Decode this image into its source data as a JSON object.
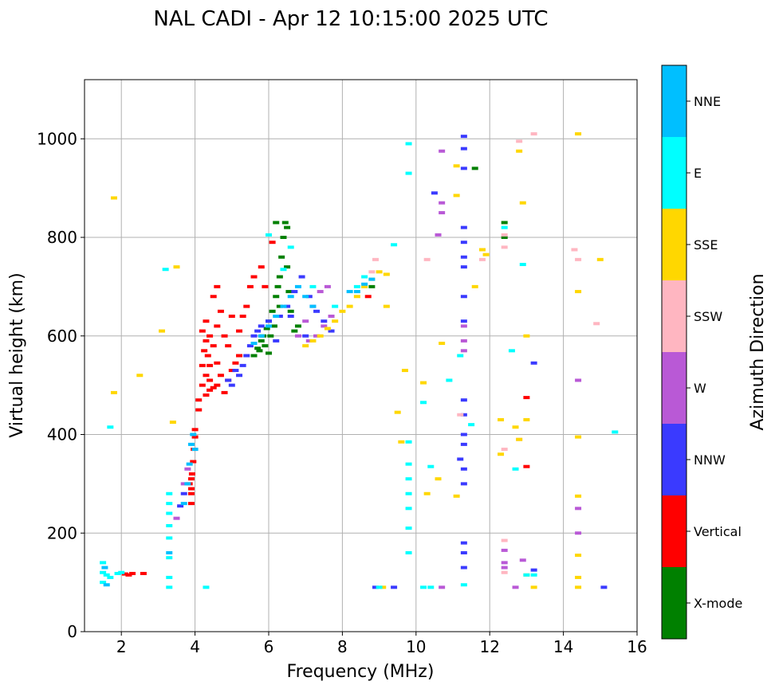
{
  "chart_data": {
    "type": "scatter",
    "title": "NAL CADI - Apr 12 10:15:00 2025 UTC",
    "xlabel": "Frequency (MHz)",
    "ylabel": "Virtual height (km)",
    "xlim": [
      1,
      16
    ],
    "ylim": [
      0,
      1120
    ],
    "xticks": [
      2,
      4,
      6,
      8,
      10,
      12,
      14,
      16
    ],
    "yticks": [
      0,
      200,
      400,
      600,
      800,
      1000
    ],
    "grid": true,
    "colorbar": {
      "label": "Azimuth Direction",
      "categories": [
        {
          "name": "X-mode",
          "color": "#008000"
        },
        {
          "name": "Vertical",
          "color": "#ff0000"
        },
        {
          "name": "NNW",
          "color": "#3a3aff"
        },
        {
          "name": "W",
          "color": "#b959d6"
        },
        {
          "name": "SSW",
          "color": "#ffb6c1"
        },
        {
          "name": "SSE",
          "color": "#ffd700"
        },
        {
          "name": "E",
          "color": "#00ffff"
        },
        {
          "name": "NNE",
          "color": "#00bfff"
        }
      ]
    },
    "series": [
      {
        "name": "X-mode",
        "points": [
          [
            5.6,
            560
          ],
          [
            5.7,
            575
          ],
          [
            5.8,
            590
          ],
          [
            5.85,
            600
          ],
          [
            5.9,
            580
          ],
          [
            5.95,
            615
          ],
          [
            6.0,
            630
          ],
          [
            6.05,
            600
          ],
          [
            6.1,
            650
          ],
          [
            6.15,
            620
          ],
          [
            6.2,
            680
          ],
          [
            6.25,
            700
          ],
          [
            6.3,
            720
          ],
          [
            6.35,
            760
          ],
          [
            6.4,
            800
          ],
          [
            6.45,
            830
          ],
          [
            6.5,
            740
          ],
          [
            6.55,
            690
          ],
          [
            6.6,
            650
          ],
          [
            6.7,
            610
          ],
          [
            6.2,
            830
          ],
          [
            6.5,
            820
          ],
          [
            5.75,
            570
          ],
          [
            6.0,
            565
          ],
          [
            6.3,
            660
          ],
          [
            11.6,
            940
          ],
          [
            12.4,
            800
          ],
          [
            12.4,
            830
          ],
          [
            8.8,
            700
          ],
          [
            6.8,
            620
          ]
        ]
      },
      {
        "name": "Vertical",
        "points": [
          [
            3.9,
            260
          ],
          [
            3.9,
            290
          ],
          [
            3.92,
            320
          ],
          [
            3.95,
            345
          ],
          [
            3.97,
            370
          ],
          [
            4.0,
            395
          ],
          [
            4.0,
            410
          ],
          [
            3.85,
            300
          ],
          [
            3.9,
            280
          ],
          [
            3.9,
            310
          ],
          [
            4.1,
            450
          ],
          [
            4.1,
            470
          ],
          [
            4.2,
            500
          ],
          [
            4.3,
            520
          ],
          [
            4.3,
            480
          ],
          [
            4.4,
            510
          ],
          [
            4.4,
            490
          ],
          [
            4.5,
            495
          ],
          [
            4.6,
            500
          ],
          [
            4.7,
            520
          ],
          [
            4.8,
            485
          ],
          [
            4.9,
            510
          ],
          [
            5.0,
            530
          ],
          [
            5.1,
            545
          ],
          [
            5.2,
            560
          ],
          [
            4.2,
            540
          ],
          [
            4.25,
            570
          ],
          [
            4.3,
            590
          ],
          [
            4.3,
            630
          ],
          [
            4.4,
            600
          ],
          [
            4.5,
            580
          ],
          [
            4.6,
            620
          ],
          [
            4.7,
            650
          ],
          [
            4.8,
            600
          ],
          [
            5.0,
            640
          ],
          [
            5.2,
            610
          ],
          [
            5.4,
            660
          ],
          [
            5.5,
            700
          ],
          [
            5.6,
            720
          ],
          [
            5.8,
            740
          ],
          [
            4.5,
            680
          ],
          [
            4.6,
            700
          ],
          [
            4.4,
            540
          ],
          [
            4.35,
            560
          ],
          [
            4.2,
            610
          ],
          [
            2.2,
            115
          ],
          [
            2.3,
            118
          ],
          [
            2.1,
            117
          ],
          [
            2.6,
            118
          ],
          [
            4.6,
            545
          ],
          [
            4.9,
            580
          ],
          [
            5.3,
            640
          ],
          [
            5.9,
            700
          ],
          [
            6.1,
            790
          ],
          [
            13.0,
            335
          ],
          [
            13.0,
            475
          ],
          [
            8.7,
            680
          ]
        ]
      },
      {
        "name": "NNW",
        "points": [
          [
            5.0,
            500
          ],
          [
            5.2,
            520
          ],
          [
            5.4,
            560
          ],
          [
            5.5,
            580
          ],
          [
            5.6,
            600
          ],
          [
            5.7,
            610
          ],
          [
            5.8,
            620
          ],
          [
            6.0,
            630
          ],
          [
            6.3,
            640
          ],
          [
            6.5,
            660
          ],
          [
            6.7,
            690
          ],
          [
            6.9,
            720
          ],
          [
            7.1,
            680
          ],
          [
            7.3,
            650
          ],
          [
            7.5,
            630
          ],
          [
            7.7,
            610
          ],
          [
            5.3,
            540
          ],
          [
            5.1,
            530
          ],
          [
            4.9,
            510
          ],
          [
            6.2,
            590
          ],
          [
            6.6,
            640
          ],
          [
            7.0,
            600
          ],
          [
            11.3,
            1005
          ],
          [
            11.3,
            980
          ],
          [
            11.3,
            940
          ],
          [
            11.3,
            820
          ],
          [
            11.3,
            790
          ],
          [
            11.3,
            760
          ],
          [
            11.3,
            740
          ],
          [
            11.3,
            680
          ],
          [
            11.3,
            630
          ],
          [
            11.3,
            470
          ],
          [
            11.3,
            440
          ],
          [
            11.3,
            400
          ],
          [
            11.3,
            380
          ],
          [
            11.3,
            330
          ],
          [
            11.3,
            300
          ],
          [
            11.3,
            180
          ],
          [
            11.3,
            130
          ],
          [
            11.3,
            160
          ],
          [
            10.5,
            890
          ],
          [
            13.2,
            545
          ],
          [
            13.2,
            125
          ],
          [
            8.9,
            90
          ],
          [
            9.4,
            90
          ],
          [
            15.1,
            90
          ],
          [
            11.2,
            350
          ],
          [
            3.6,
            255
          ],
          [
            3.7,
            280
          ]
        ]
      },
      {
        "name": "W",
        "points": [
          [
            6.8,
            600
          ],
          [
            7.0,
            630
          ],
          [
            7.2,
            660
          ],
          [
            7.4,
            690
          ],
          [
            7.6,
            700
          ],
          [
            7.7,
            640
          ],
          [
            7.5,
            620
          ],
          [
            7.3,
            600
          ],
          [
            7.1,
            590
          ],
          [
            10.7,
            975
          ],
          [
            10.7,
            870
          ],
          [
            10.7,
            850
          ],
          [
            10.6,
            805
          ],
          [
            11.3,
            620
          ],
          [
            11.3,
            590
          ],
          [
            11.3,
            570
          ],
          [
            14.4,
            510
          ],
          [
            14.4,
            250
          ],
          [
            14.4,
            200
          ],
          [
            12.4,
            165
          ],
          [
            12.4,
            140
          ],
          [
            12.4,
            130
          ],
          [
            12.7,
            90
          ],
          [
            12.9,
            145
          ],
          [
            10.7,
            90
          ],
          [
            3.5,
            230
          ],
          [
            3.7,
            300
          ],
          [
            3.8,
            330
          ]
        ]
      },
      {
        "name": "SSW",
        "points": [
          [
            8.9,
            755
          ],
          [
            8.8,
            730
          ],
          [
            12.8,
            995
          ],
          [
            12.4,
            805
          ],
          [
            12.4,
            780
          ],
          [
            12.4,
            370
          ],
          [
            12.4,
            185
          ],
          [
            12.4,
            120
          ],
          [
            12.8,
            390
          ],
          [
            13.2,
            1010
          ],
          [
            14.3,
            775
          ],
          [
            14.4,
            755
          ],
          [
            14.9,
            625
          ],
          [
            11.2,
            440
          ],
          [
            11.8,
            755
          ],
          [
            10.3,
            755
          ]
        ]
      },
      {
        "name": "SSE",
        "points": [
          [
            7.4,
            600
          ],
          [
            7.6,
            615
          ],
          [
            7.8,
            630
          ],
          [
            8.0,
            650
          ],
          [
            8.2,
            660
          ],
          [
            8.4,
            680
          ],
          [
            8.6,
            700
          ],
          [
            8.8,
            715
          ],
          [
            9.0,
            730
          ],
          [
            9.2,
            725
          ],
          [
            7.0,
            580
          ],
          [
            7.2,
            590
          ],
          [
            1.8,
            880
          ],
          [
            3.5,
            740
          ],
          [
            3.1,
            610
          ],
          [
            3.4,
            425
          ],
          [
            2.5,
            520
          ],
          [
            1.8,
            485
          ],
          [
            12.8,
            975
          ],
          [
            12.9,
            870
          ],
          [
            13.0,
            600
          ],
          [
            13.0,
            430
          ],
          [
            12.7,
            415
          ],
          [
            12.3,
            430
          ],
          [
            12.3,
            360
          ],
          [
            12.8,
            390
          ],
          [
            13.0,
            115
          ],
          [
            13.2,
            90
          ],
          [
            14.4,
            1010
          ],
          [
            14.4,
            690
          ],
          [
            14.4,
            395
          ],
          [
            14.4,
            275
          ],
          [
            14.4,
            155
          ],
          [
            14.4,
            110
          ],
          [
            14.4,
            90
          ],
          [
            15.0,
            755
          ],
          [
            11.9,
            765
          ],
          [
            11.1,
            945
          ],
          [
            11.1,
            885
          ],
          [
            11.1,
            275
          ],
          [
            10.2,
            505
          ],
          [
            10.3,
            280
          ],
          [
            10.6,
            310
          ],
          [
            10.7,
            585
          ],
          [
            9.7,
            530
          ],
          [
            9.5,
            445
          ],
          [
            9.6,
            385
          ],
          [
            9.2,
            660
          ],
          [
            11.6,
            700
          ],
          [
            11.8,
            775
          ],
          [
            9.1,
            90
          ]
        ]
      },
      {
        "name": "E",
        "points": [
          [
            1.5,
            100
          ],
          [
            1.5,
            120
          ],
          [
            1.5,
            140
          ],
          [
            1.6,
            115
          ],
          [
            1.7,
            110
          ],
          [
            1.9,
            118
          ],
          [
            2.0,
            120
          ],
          [
            3.3,
            150
          ],
          [
            3.3,
            190
          ],
          [
            3.3,
            215
          ],
          [
            3.3,
            240
          ],
          [
            3.3,
            260
          ],
          [
            3.3,
            280
          ],
          [
            3.3,
            110
          ],
          [
            3.3,
            90
          ],
          [
            3.2,
            735
          ],
          [
            4.3,
            90
          ],
          [
            6.0,
            805
          ],
          [
            6.6,
            780
          ],
          [
            6.4,
            735
          ],
          [
            7.2,
            700
          ],
          [
            7.8,
            660
          ],
          [
            8.4,
            700
          ],
          [
            8.6,
            720
          ],
          [
            9.4,
            785
          ],
          [
            9.8,
            990
          ],
          [
            9.8,
            930
          ],
          [
            9.8,
            385
          ],
          [
            9.8,
            340
          ],
          [
            9.8,
            310
          ],
          [
            9.8,
            280
          ],
          [
            9.8,
            250
          ],
          [
            9.8,
            210
          ],
          [
            9.8,
            160
          ],
          [
            10.4,
            335
          ],
          [
            10.2,
            465
          ],
          [
            10.2,
            90
          ],
          [
            10.4,
            90
          ],
          [
            10.9,
            510
          ],
          [
            11.2,
            560
          ],
          [
            11.3,
            95
          ],
          [
            11.5,
            420
          ],
          [
            12.4,
            820
          ],
          [
            12.6,
            570
          ],
          [
            12.9,
            745
          ],
          [
            13.0,
            115
          ],
          [
            13.2,
            115
          ],
          [
            15.4,
            405
          ],
          [
            9.0,
            90
          ],
          [
            12.7,
            330
          ],
          [
            1.7,
            415
          ]
        ]
      },
      {
        "name": "NNE",
        "points": [
          [
            3.7,
            260
          ],
          [
            3.8,
            300
          ],
          [
            3.85,
            340
          ],
          [
            3.9,
            380
          ],
          [
            3.95,
            400
          ],
          [
            4.0,
            370
          ],
          [
            5.6,
            585
          ],
          [
            5.8,
            600
          ],
          [
            6.0,
            620
          ],
          [
            6.2,
            640
          ],
          [
            6.4,
            660
          ],
          [
            6.6,
            680
          ],
          [
            6.8,
            700
          ],
          [
            7.0,
            680
          ],
          [
            7.2,
            660
          ],
          [
            8.2,
            690
          ],
          [
            8.4,
            690
          ],
          [
            8.6,
            705
          ],
          [
            8.8,
            715
          ],
          [
            1.6,
            95
          ],
          [
            1.55,
            130
          ],
          [
            3.3,
            160
          ]
        ]
      }
    ]
  }
}
